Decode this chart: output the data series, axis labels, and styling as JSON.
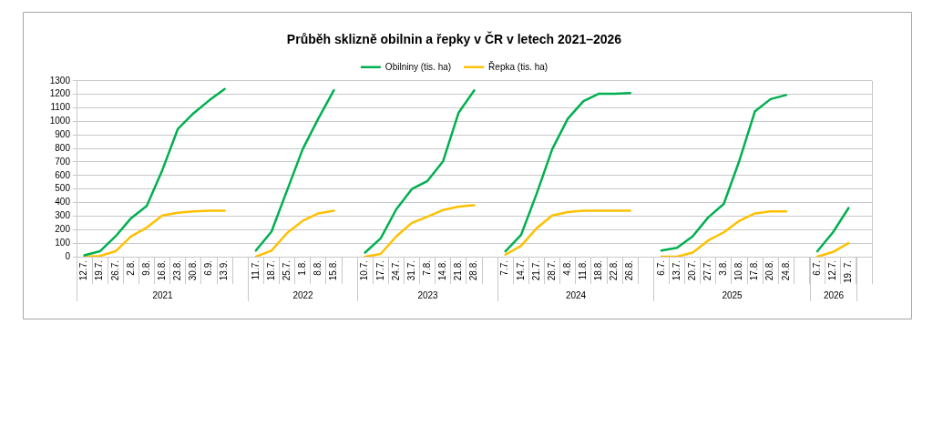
{
  "chart_data": {
    "type": "line",
    "title": "Průběh sklizně obilnin a řepky v ČR v letech 2021–2026",
    "categories": [
      "12.7.",
      "19.7.",
      "26.7.",
      "2.8.",
      "9.8.",
      "16.8.",
      "23.8.",
      "30.8.",
      "6.9.",
      "13.9.",
      null,
      "11.7.",
      "18.7.",
      "25.7.",
      "1.8.",
      "8.8.",
      "15.8.",
      null,
      "10.7.",
      "17.7.",
      "24.7.",
      "31.7.",
      "7.8.",
      "14.8.",
      "21.8.",
      "28.8.",
      null,
      "7.7.",
      "14.7.",
      "21.7.",
      "28.7.",
      "4.8.",
      "11.8.",
      "18.8.",
      "22.8.",
      "26.8.",
      null,
      "6.7.",
      "13.7.",
      "20.7.",
      "27.7.",
      "3.8.",
      "10.8.",
      "17.8.",
      "20.8.",
      "24.8.",
      null,
      "6.7.",
      "12.7.",
      "19. 7.",
      null
    ],
    "series": [
      {
        "name": "Obilniny (tis. ha)",
        "color": "#00b050",
        "values": [
          10,
          40,
          150,
          285,
          375,
          640,
          945,
          1060,
          1155,
          1240,
          null,
          45,
          185,
          490,
          795,
          1020,
          1230,
          null,
          30,
          135,
          350,
          500,
          560,
          705,
          1065,
          1230,
          null,
          40,
          160,
          465,
          795,
          1020,
          1150,
          1205,
          1205,
          1210,
          null,
          45,
          65,
          150,
          290,
          390,
          710,
          1075,
          1165,
          1195,
          null,
          40,
          180,
          360,
          null
        ]
      },
      {
        "name": "Řepka (tis. ha)",
        "color": "#ffc000",
        "values": [
          0,
          5,
          40,
          150,
          215,
          305,
          325,
          335,
          340,
          340,
          null,
          0,
          45,
          175,
          265,
          320,
          340,
          null,
          0,
          20,
          150,
          250,
          295,
          345,
          370,
          380,
          null,
          15,
          80,
          210,
          305,
          330,
          340,
          340,
          340,
          340,
          null,
          0,
          0,
          30,
          120,
          180,
          265,
          320,
          335,
          335,
          null,
          0,
          35,
          100,
          null
        ]
      }
    ],
    "ylim": [
      0,
      1300
    ],
    "yticks": [
      0,
      100,
      200,
      300,
      400,
      500,
      600,
      700,
      800,
      900,
      1000,
      1100,
      1200,
      1300
    ],
    "grid": "y",
    "legend": "top",
    "annotations": [
      "2021",
      "2022",
      "2023",
      "2024",
      "2025",
      "2026"
    ]
  }
}
